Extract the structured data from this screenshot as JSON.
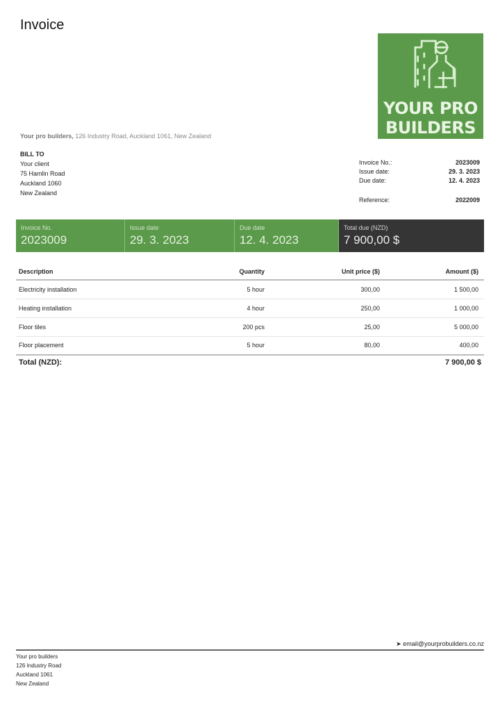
{
  "title": "Invoice",
  "logo": {
    "line1": "YOUR PRO",
    "line2": "BUILDERS",
    "color": "#5a9a4a"
  },
  "company": {
    "name": "Your pro builders,",
    "address": "126 Industry Road, Auckland 1061, New Zealand"
  },
  "bill_to": {
    "heading": "BILL TO",
    "lines": [
      "Your client",
      "75 Hamlin Road",
      "Auckland 1060",
      "New Zealand"
    ]
  },
  "meta": [
    {
      "label": "Invoice No.:",
      "value": "2023009"
    },
    {
      "label": "Issue date:",
      "value": "29. 3. 2023"
    },
    {
      "label": "Due date:",
      "value": "12. 4. 2023"
    },
    {
      "label": "Reference:",
      "value": "2022009"
    }
  ],
  "banner": [
    {
      "label": "Invoice No.",
      "value": "2023009"
    },
    {
      "label": "Issue date",
      "value": "29. 3. 2023"
    },
    {
      "label": "Due date",
      "value": "12. 4. 2023"
    },
    {
      "label": "Total due (NZD)",
      "value": "7 900,00 $"
    }
  ],
  "table": {
    "headers": [
      "Description",
      "Quantity",
      "Unit price ($)",
      "Amount ($)"
    ],
    "rows": [
      [
        "Electricity installation",
        "5 hour",
        "300,00",
        "1 500,00"
      ],
      [
        "Heating installation",
        "4 hour",
        "250,00",
        "1 000,00"
      ],
      [
        "Floor tiles",
        "200 pcs",
        "25,00",
        "5 000,00"
      ],
      [
        "Floor placement",
        "5 hour",
        "80,00",
        "400,00"
      ]
    ],
    "total_label": "Total (NZD):",
    "total_value": "7 900,00 $"
  },
  "footer": {
    "email": "email@yourprobuilders.co.nz",
    "email_icon": "send-icon",
    "lines": [
      "Your pro builders",
      "126 Industry Road",
      "Auckland 1061",
      "New Zealand"
    ]
  }
}
